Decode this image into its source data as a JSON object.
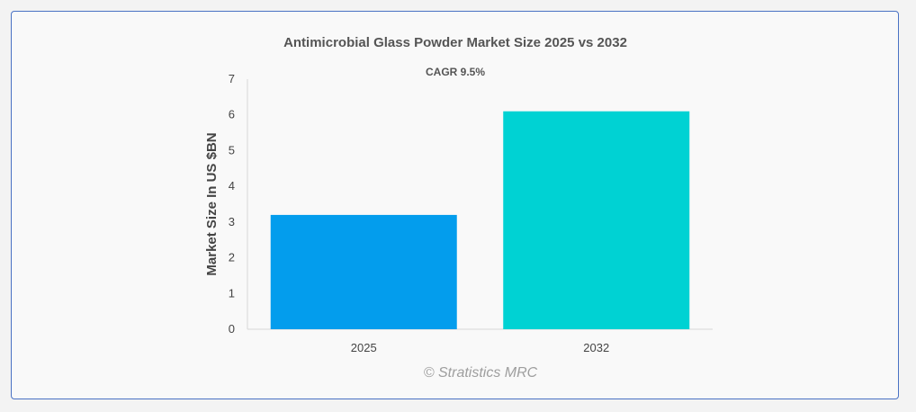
{
  "chart_data": {
    "type": "bar",
    "title": "Antimicrobial Glass Powder Market Size 2025 vs 2032",
    "subtitle": "CAGR 9.5%",
    "categories": [
      "2025",
      "2032"
    ],
    "values": [
      3.2,
      6.1
    ],
    "colors": [
      "#039ded",
      "#00d2d3"
    ],
    "xlabel": "",
    "ylabel": "Market Size In US $BN",
    "ylim": [
      0,
      7
    ],
    "yticks": [
      0,
      1,
      2,
      3,
      4,
      5,
      6,
      7
    ],
    "grid": false,
    "legend": "none"
  },
  "watermark": "© Stratistics MRC"
}
